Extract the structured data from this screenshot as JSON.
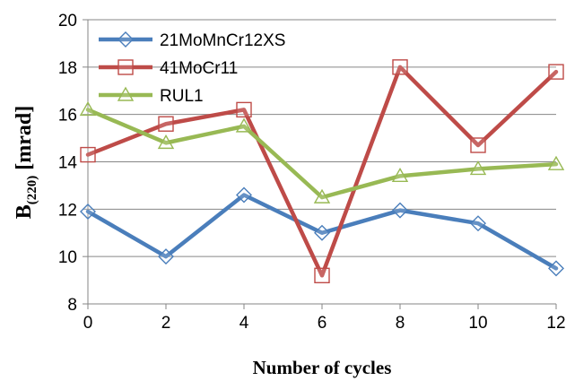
{
  "chart_data": {
    "type": "line",
    "title": "",
    "xlabel": "Number of cycles",
    "ylabel_main": "B",
    "ylabel_sub": "(220)",
    "ylabel_rest": " [mrad]",
    "x": [
      0,
      2,
      4,
      6,
      8,
      10,
      12
    ],
    "xlim": [
      0,
      12
    ],
    "ylim": [
      8,
      20
    ],
    "xticks": [
      "0",
      "2",
      "4",
      "6",
      "8",
      "10",
      "12"
    ],
    "yticks": [
      "8",
      "10",
      "12",
      "14",
      "16",
      "18",
      "20"
    ],
    "grid": true,
    "legend_position": "top-left",
    "series": [
      {
        "name": "21MoMnCr12XS",
        "color": "#4a7ebb",
        "marker": "diamond",
        "values": [
          11.9,
          10.0,
          12.6,
          11.0,
          11.95,
          11.4,
          9.5
        ]
      },
      {
        "name": "41MoCr11",
        "color": "#be4b48",
        "marker": "square",
        "values": [
          14.3,
          15.6,
          16.2,
          9.2,
          18.0,
          14.7,
          17.8
        ]
      },
      {
        "name": "RUL1",
        "color": "#98b954",
        "marker": "triangle",
        "values": [
          16.2,
          14.8,
          15.5,
          12.5,
          13.4,
          13.7,
          13.9
        ]
      }
    ]
  }
}
